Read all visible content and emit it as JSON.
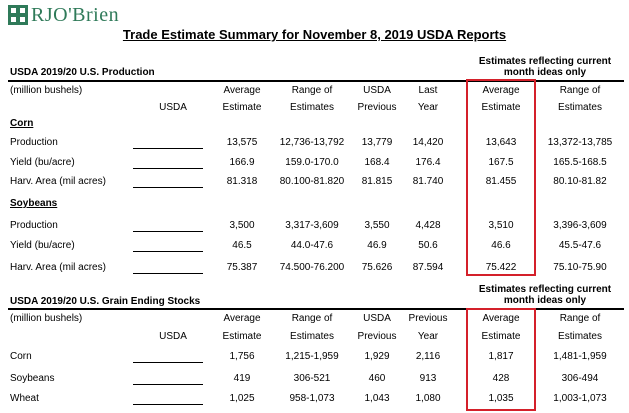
{
  "brand": {
    "name": "RJO'Brien"
  },
  "title": "Trade Estimate Summary for November 8, 2019 USDA Reports",
  "colors": {
    "accent_red": "#d4202a",
    "brand_green": "#2f7a59"
  },
  "production": {
    "heading": "USDA 2019/20 U.S. Production",
    "unit": "(million bushels)",
    "current_note_line1": "Estimates reflecting current",
    "current_note_line2": "month ideas only",
    "headers": {
      "usda": "USDA",
      "avg_1": "Average",
      "avg_2": "Estimate",
      "range_1": "Range of",
      "range_2": "Estimates",
      "prev_1": "USDA",
      "prev_2": "Previous",
      "last_1": "Last",
      "last_2": "Year",
      "cur_avg_1": "Average",
      "cur_avg_2": "Estimate",
      "cur_range_1": "Range of",
      "cur_range_2": "Estimates"
    },
    "corn": {
      "label": "Corn",
      "rows": [
        {
          "label": "Production",
          "avg": "13,575",
          "range": "12,736-13,792",
          "prev": "13,779",
          "last": "14,420",
          "cur_avg": "13,643",
          "cur_range": "13,372-13,785"
        },
        {
          "label": "Yield (bu/acre)",
          "avg": "166.9",
          "range": "159.0-170.0",
          "prev": "168.4",
          "last": "176.4",
          "cur_avg": "167.5",
          "cur_range": "165.5-168.5"
        },
        {
          "label": "Harv. Area (mil acres)",
          "avg": "81.318",
          "range": "80.100-81.820",
          "prev": "81.815",
          "last": "81.740",
          "cur_avg": "81.455",
          "cur_range": "80.10-81.82"
        }
      ]
    },
    "soybeans": {
      "label": "Soybeans",
      "rows": [
        {
          "label": "Production",
          "avg": "3,500",
          "range": "3,317-3,609",
          "prev": "3,550",
          "last": "4,428",
          "cur_avg": "3,510",
          "cur_range": "3,396-3,609"
        },
        {
          "label": "Yield (bu/acre)",
          "avg": "46.5",
          "range": "44.0-47.6",
          "prev": "46.9",
          "last": "50.6",
          "cur_avg": "46.6",
          "cur_range": "45.5-47.6"
        },
        {
          "label": "Harv. Area (mil acres)",
          "avg": "75.387",
          "range": "74.500-76.200",
          "prev": "75.626",
          "last": "87.594",
          "cur_avg": "75.422",
          "cur_range": "75.10-75.90"
        }
      ]
    }
  },
  "stocks": {
    "heading": "USDA 2019/20 U.S. Grain Ending Stocks",
    "unit": "(million bushels)",
    "current_note_line1": "Estimates reflecting current",
    "current_note_line2": "month ideas only",
    "headers": {
      "usda": "USDA",
      "avg_1": "Average",
      "avg_2": "Estimate",
      "range_1": "Range of",
      "range_2": "Estimates",
      "prev_1": "USDA",
      "prev_2": "Previous",
      "last_1": "Previous",
      "last_2": "Year",
      "cur_avg_1": "Average",
      "cur_avg_2": "Estimate",
      "cur_range_1": "Range of",
      "cur_range_2": "Estimates"
    },
    "rows": [
      {
        "label": "Corn",
        "avg": "1,756",
        "range": "1,215-1,959",
        "prev": "1,929",
        "last": "2,116",
        "cur_avg": "1,817",
        "cur_range": "1,481-1,959"
      },
      {
        "label": "Soybeans",
        "avg": "419",
        "range": "306-521",
        "prev": "460",
        "last": "913",
        "cur_avg": "428",
        "cur_range": "306-494"
      },
      {
        "label": "Wheat",
        "avg": "1,025",
        "range": "958-1,073",
        "prev": "1,043",
        "last": "1,080",
        "cur_avg": "1,035",
        "cur_range": "1,003-1,073"
      }
    ]
  }
}
